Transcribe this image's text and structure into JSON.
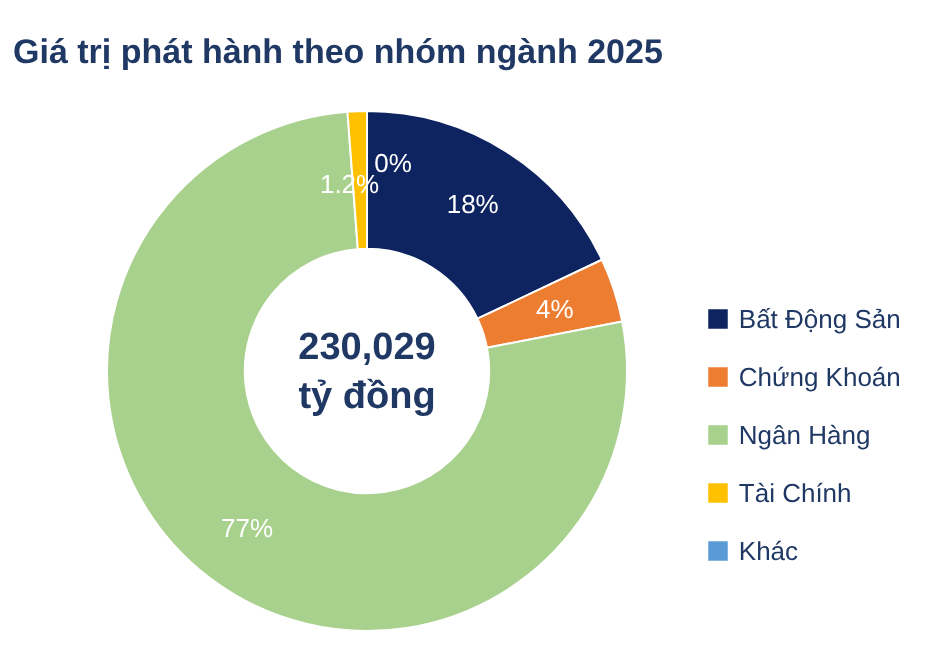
{
  "chart_data": {
    "type": "donut",
    "title": "Giá trị phát hành theo nhóm ngành 2025",
    "categories": [
      "Bất Động Sản",
      "Chứng Khoán",
      "Ngân Hàng",
      "Tài Chính",
      "Khác"
    ],
    "values": [
      18,
      4,
      77,
      1.2,
      0
    ],
    "colors": [
      "#0e2461",
      "#ed7d31",
      "#a9d18e",
      "#ffc000",
      "#5b9bd5"
    ],
    "value_labels": [
      "18%",
      "4%",
      "77%",
      "1.2%",
      "0%"
    ],
    "annotations": [
      "230,029\ntỷ đồng"
    ],
    "legend": "right"
  }
}
